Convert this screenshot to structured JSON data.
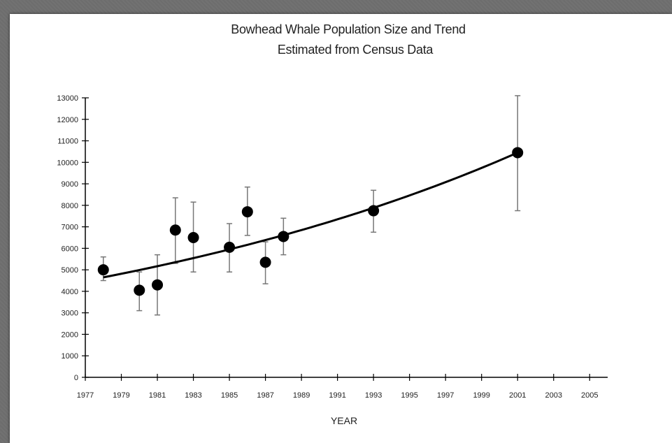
{
  "chart_data": {
    "type": "scatter",
    "title_line1": "Bowhead Whale Population Size and Trend",
    "title_line2": "Estimated from Census Data",
    "xlabel": "YEAR",
    "ylabel": "",
    "xlim": [
      1977,
      2006
    ],
    "ylim": [
      0,
      13000
    ],
    "x_ticks": [
      1977,
      1979,
      1981,
      1983,
      1985,
      1987,
      1989,
      1991,
      1993,
      1995,
      1997,
      1999,
      2001,
      2003,
      2005
    ],
    "y_ticks": [
      0,
      1000,
      2000,
      3000,
      4000,
      5000,
      6000,
      7000,
      8000,
      9000,
      10000,
      11000,
      12000,
      13000
    ],
    "grid": false,
    "legend": "none",
    "colors": {
      "points": "#000000",
      "trend": "#000000",
      "error_bars": "#777777"
    },
    "points": [
      {
        "x": 1978,
        "y": 5000,
        "err_low": 4500,
        "err_high": 5600
      },
      {
        "x": 1980,
        "y": 4050,
        "err_low": 3100,
        "err_high": 4900
      },
      {
        "x": 1981,
        "y": 4300,
        "err_low": 2900,
        "err_high": 5700
      },
      {
        "x": 1982,
        "y": 6850,
        "err_low": 5300,
        "err_high": 8350
      },
      {
        "x": 1983,
        "y": 6500,
        "err_low": 4900,
        "err_high": 8150
      },
      {
        "x": 1985,
        "y": 6050,
        "err_low": 4900,
        "err_high": 7150
      },
      {
        "x": 1986,
        "y": 7700,
        "err_low": 6600,
        "err_high": 8850
      },
      {
        "x": 1987,
        "y": 5350,
        "err_low": 4350,
        "err_high": 6300
      },
      {
        "x": 1988,
        "y": 6550,
        "err_low": 5700,
        "err_high": 7400
      },
      {
        "x": 1993,
        "y": 7750,
        "err_low": 6750,
        "err_high": 8700
      },
      {
        "x": 2001,
        "y": 10450,
        "err_low": 7750,
        "err_high": 13100
      }
    ],
    "trend": {
      "type": "exponential",
      "x_start": 1978,
      "x_end": 2001,
      "y_start": 4650,
      "y_end": 10450
    }
  }
}
